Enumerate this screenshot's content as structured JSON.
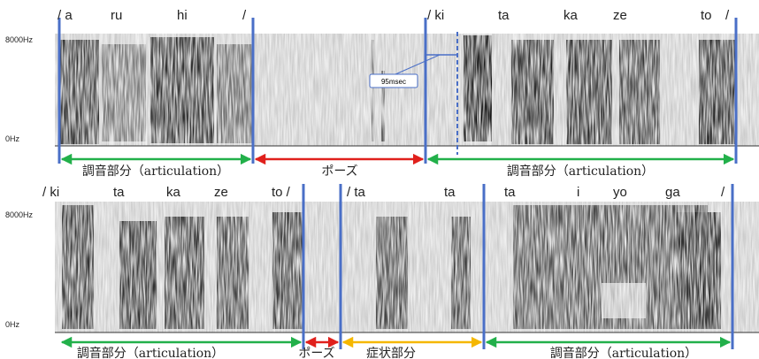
{
  "top": {
    "freq_labels": [
      "8000Hz",
      "0Hz"
    ],
    "syllables": [
      "/ a",
      "ru",
      "hi",
      "/",
      "/ ki",
      "ta",
      "ka",
      "ze",
      "to",
      "/"
    ],
    "annotation": "95msec",
    "segments": [
      "調音部分（articulation）",
      "ポーズ",
      "調音部分（articulation）"
    ]
  },
  "bottom": {
    "freq_labels": [
      "8000Hz",
      "0Hz"
    ],
    "syllables": [
      "/ ki",
      "ta",
      "ka",
      "ze",
      "to /",
      "/ ta",
      "ta",
      "ta",
      "i",
      "yo",
      "ga",
      "/"
    ],
    "segments": [
      "調音部分（articulation）",
      "ポーズ",
      "症状部分",
      "調音部分（articulation）"
    ]
  }
}
